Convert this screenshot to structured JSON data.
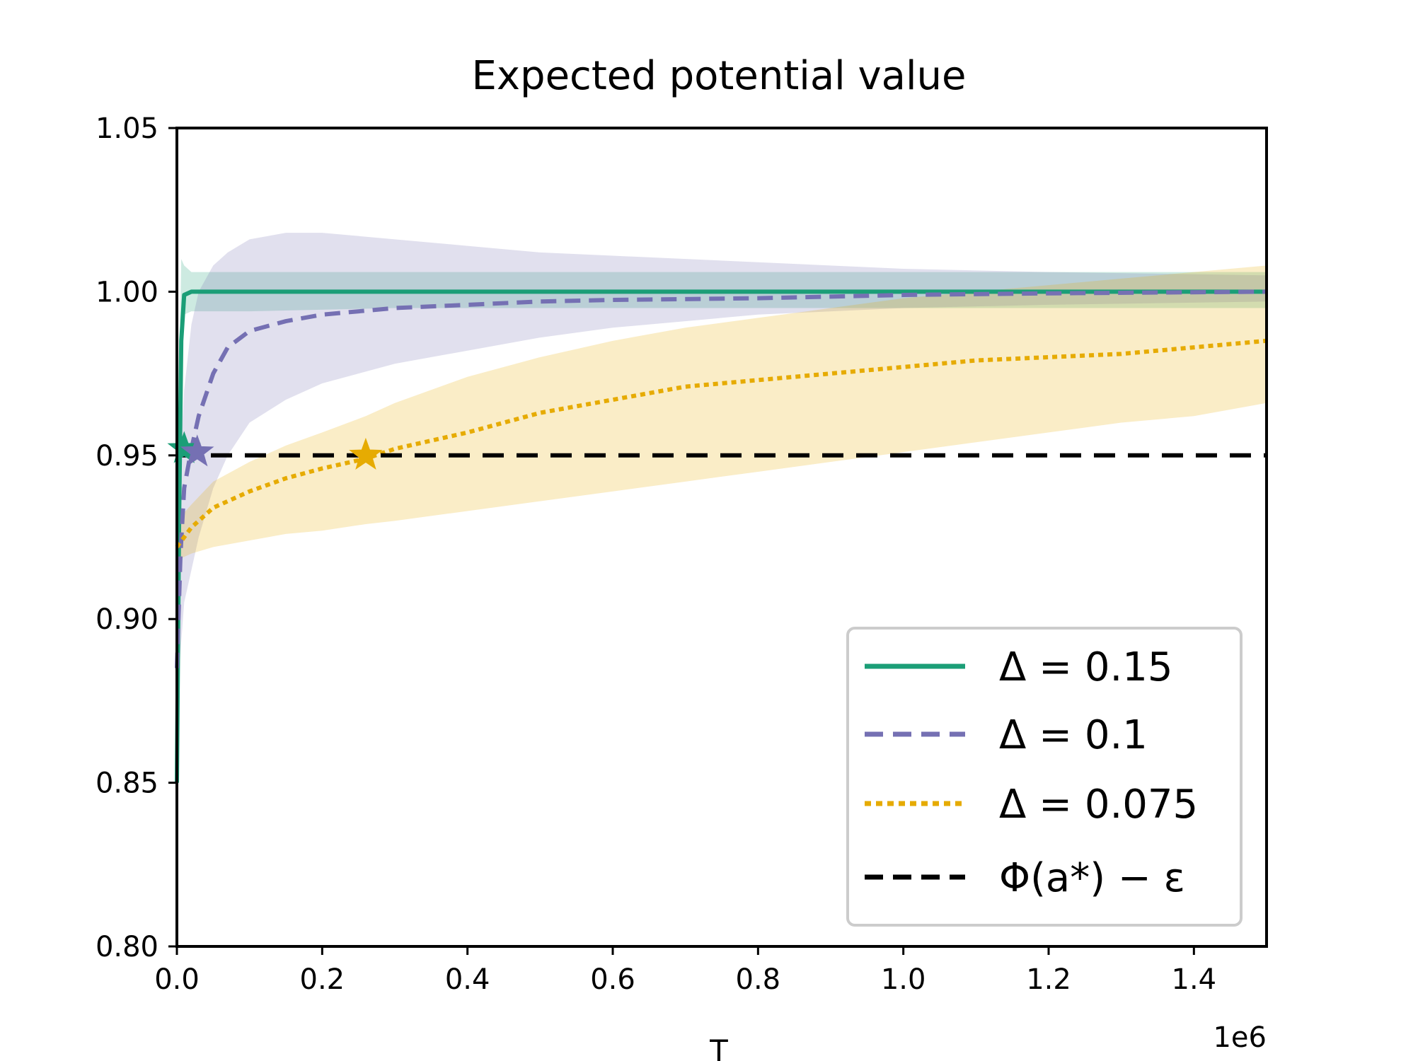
{
  "chart_data": {
    "type": "line",
    "title": "Expected potential value",
    "xlabel": "T",
    "ylabel": "",
    "x_offset_label": "1e6",
    "xlim": [
      0,
      1.5
    ],
    "ylim": [
      0.8,
      1.05
    ],
    "x_ticks": [
      "0.0",
      "0.2",
      "0.4",
      "0.6",
      "0.8",
      "1.0",
      "1.2",
      "1.4"
    ],
    "y_ticks": [
      "0.80",
      "0.85",
      "0.90",
      "0.95",
      "1.00",
      "1.05"
    ],
    "grid": false,
    "legend_position": "lower-right",
    "series": [
      {
        "name": "Δ = 0.15",
        "color": "#1b9e77",
        "style": "solid",
        "x": [
          0,
          0.003,
          0.006,
          0.01,
          0.02,
          0.05,
          0.1,
          0.3,
          0.6,
          1.0,
          1.5
        ],
        "values": [
          0.85,
          0.93,
          0.985,
          0.999,
          1.0,
          1.0,
          1.0,
          1.0,
          1.0,
          1.0,
          1.0
        ],
        "band_lower": [
          0.845,
          0.91,
          0.975,
          0.993,
          0.994,
          0.994,
          0.994,
          0.995,
          0.995,
          0.995,
          0.995
        ],
        "band_upper": [
          0.88,
          0.97,
          1.01,
          1.008,
          1.006,
          1.006,
          1.006,
          1.006,
          1.006,
          1.006,
          1.006
        ],
        "star": [
          0.01,
          0.952
        ]
      },
      {
        "name": "Δ = 0.1",
        "color": "#7570b3",
        "style": "dashed",
        "x": [
          0,
          0.005,
          0.01,
          0.02,
          0.03,
          0.05,
          0.07,
          0.1,
          0.15,
          0.2,
          0.3,
          0.4,
          0.5,
          0.6,
          0.8,
          1.0,
          1.2,
          1.5
        ],
        "values": [
          0.885,
          0.92,
          0.94,
          0.952,
          0.962,
          0.975,
          0.983,
          0.988,
          0.991,
          0.993,
          0.995,
          0.996,
          0.997,
          0.9975,
          0.998,
          0.999,
          0.9995,
          1.0
        ],
        "band_lower": [
          0.87,
          0.89,
          0.905,
          0.915,
          0.925,
          0.94,
          0.95,
          0.96,
          0.967,
          0.972,
          0.978,
          0.982,
          0.986,
          0.989,
          0.993,
          0.995,
          0.996,
          0.997
        ],
        "band_upper": [
          0.92,
          0.95,
          0.97,
          0.99,
          1.0,
          1.008,
          1.012,
          1.016,
          1.018,
          1.018,
          1.016,
          1.014,
          1.012,
          1.011,
          1.009,
          1.007,
          1.006,
          1.005
        ],
        "star": [
          0.028,
          0.951
        ]
      },
      {
        "name": "Δ = 0.075",
        "color": "#e6ab02",
        "style": "dotted",
        "x": [
          0,
          0.02,
          0.05,
          0.1,
          0.15,
          0.2,
          0.26,
          0.3,
          0.4,
          0.5,
          0.6,
          0.7,
          0.8,
          0.9,
          1.0,
          1.1,
          1.2,
          1.3,
          1.4,
          1.5
        ],
        "values": [
          0.922,
          0.928,
          0.934,
          0.939,
          0.943,
          0.946,
          0.949,
          0.952,
          0.957,
          0.963,
          0.967,
          0.971,
          0.973,
          0.975,
          0.977,
          0.979,
          0.98,
          0.981,
          0.983,
          0.985
        ],
        "band_lower": [
          0.918,
          0.92,
          0.922,
          0.924,
          0.926,
          0.927,
          0.929,
          0.93,
          0.933,
          0.936,
          0.939,
          0.942,
          0.945,
          0.948,
          0.951,
          0.954,
          0.957,
          0.96,
          0.962,
          0.966
        ],
        "band_upper": [
          0.93,
          0.935,
          0.942,
          0.948,
          0.953,
          0.957,
          0.962,
          0.966,
          0.974,
          0.98,
          0.985,
          0.989,
          0.992,
          0.995,
          0.998,
          1.0,
          1.002,
          1.004,
          1.006,
          1.008
        ],
        "star": [
          0.26,
          0.95
        ]
      },
      {
        "name": "Φ(a*) − ε",
        "color": "#000000",
        "style": "dashed-threshold",
        "x": [
          0,
          1.5
        ],
        "values": [
          0.95,
          0.95
        ]
      }
    ]
  }
}
